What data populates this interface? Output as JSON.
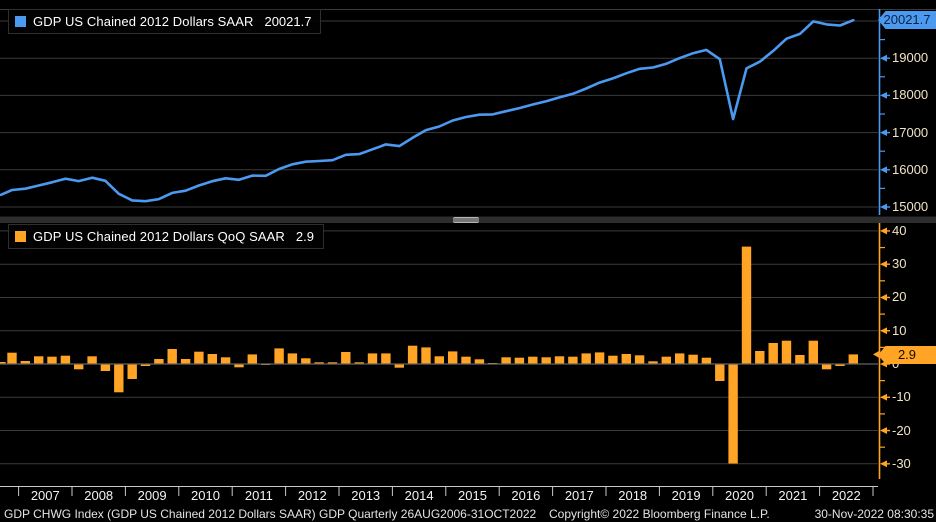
{
  "app": {
    "background": "#000000",
    "accent_blue": "#4c99f0",
    "accent_orange": "#ffa424",
    "grid_color": "#3a3a3a",
    "tick_label_color": "#f0e4c6"
  },
  "top_panel": {
    "legend": {
      "label": "GDP US Chained 2012 Dollars SAAR",
      "value": "20021.7"
    },
    "axis": {
      "badge": "20021.7",
      "tick_labels": [
        "19000",
        "18000",
        "17000",
        "16000",
        "15000"
      ]
    }
  },
  "bottom_panel": {
    "legend": {
      "label": "GDP US Chained 2012 Dollars QoQ SAAR",
      "value": "2.9"
    },
    "axis": {
      "badge": "2.9",
      "tick_labels": [
        "40",
        "30",
        "20",
        "10",
        "0",
        "-10",
        "-20",
        "-30"
      ]
    }
  },
  "x_axis": {
    "years": [
      "2007",
      "2008",
      "2009",
      "2010",
      "2011",
      "2012",
      "2013",
      "2014",
      "2015",
      "2016",
      "2017",
      "2018",
      "2019",
      "2020",
      "2021",
      "2022"
    ]
  },
  "footer": {
    "left": "GDP CHWG Index (GDP US Chained 2012 Dollars SAAR) GDP  Quarterly 26AUG2006-31OCT2022",
    "copyright": "Copyright© 2022 Bloomberg Finance L.P.",
    "datetime": "30-Nov-2022 08:30:35"
  },
  "chart_data": [
    {
      "type": "line",
      "title": "GDP US Chained 2012 Dollars SAAR",
      "color": "#4c99f0",
      "last_value": 20021.7,
      "ylim": [
        14785,
        20350
      ],
      "yticks": [
        15000,
        16000,
        17000,
        18000,
        19000,
        20000
      ],
      "grid": true,
      "legend_position": "top-left",
      "x": [
        "2006Q3",
        "2006Q4",
        "2007Q1",
        "2007Q2",
        "2007Q3",
        "2007Q4",
        "2008Q1",
        "2008Q2",
        "2008Q3",
        "2008Q4",
        "2009Q1",
        "2009Q2",
        "2009Q3",
        "2009Q4",
        "2010Q1",
        "2010Q2",
        "2010Q3",
        "2010Q4",
        "2011Q1",
        "2011Q2",
        "2011Q3",
        "2011Q4",
        "2012Q1",
        "2012Q2",
        "2012Q3",
        "2012Q4",
        "2013Q1",
        "2013Q2",
        "2013Q3",
        "2013Q4",
        "2014Q1",
        "2014Q2",
        "2014Q3",
        "2014Q4",
        "2015Q1",
        "2015Q2",
        "2015Q3",
        "2015Q4",
        "2016Q1",
        "2016Q2",
        "2016Q3",
        "2016Q4",
        "2017Q1",
        "2017Q2",
        "2017Q3",
        "2017Q4",
        "2018Q1",
        "2018Q2",
        "2018Q3",
        "2018Q4",
        "2019Q1",
        "2019Q2",
        "2019Q3",
        "2019Q4",
        "2020Q1",
        "2020Q2",
        "2020Q3",
        "2020Q4",
        "2021Q1",
        "2021Q2",
        "2021Q3",
        "2021Q4",
        "2022Q1",
        "2022Q2",
        "2022Q3"
      ],
      "values": [
        15327,
        15456,
        15491,
        15579,
        15664,
        15761,
        15697,
        15787,
        15704,
        15354,
        15178,
        15155,
        15212,
        15380,
        15437,
        15577,
        15693,
        15771,
        15731,
        15844,
        15840,
        16022,
        16149,
        16217,
        16237,
        16257,
        16402,
        16422,
        16552,
        16683,
        16637,
        16860,
        17067,
        17164,
        17325,
        17419,
        17480,
        17489,
        17576,
        17659,
        17755,
        17843,
        17945,
        18043,
        18186,
        18343,
        18457,
        18594,
        18714,
        18751,
        18853,
        19002,
        19134,
        19224,
        18974,
        17362,
        18725,
        18905,
        19196,
        19523,
        19654,
        19989,
        19909,
        19879,
        20021.7
      ]
    },
    {
      "type": "bar",
      "title": "GDP US Chained 2012 Dollars QoQ SAAR",
      "color": "#ffa424",
      "last_value": 2.9,
      "ylim": [
        -33,
        42
      ],
      "yticks": [
        -30,
        -20,
        -10,
        0,
        10,
        20,
        30,
        40
      ],
      "grid": true,
      "legend_position": "top-left",
      "x": [
        "2006Q3",
        "2006Q4",
        "2007Q1",
        "2007Q2",
        "2007Q3",
        "2007Q4",
        "2008Q1",
        "2008Q2",
        "2008Q3",
        "2008Q4",
        "2009Q1",
        "2009Q2",
        "2009Q3",
        "2009Q4",
        "2010Q1",
        "2010Q2",
        "2010Q3",
        "2010Q4",
        "2011Q1",
        "2011Q2",
        "2011Q3",
        "2011Q4",
        "2012Q1",
        "2012Q2",
        "2012Q3",
        "2012Q4",
        "2013Q1",
        "2013Q2",
        "2013Q3",
        "2013Q4",
        "2014Q1",
        "2014Q2",
        "2014Q3",
        "2014Q4",
        "2015Q1",
        "2015Q2",
        "2015Q3",
        "2015Q4",
        "2016Q1",
        "2016Q2",
        "2016Q3",
        "2016Q4",
        "2017Q1",
        "2017Q2",
        "2017Q3",
        "2017Q4",
        "2018Q1",
        "2018Q2",
        "2018Q3",
        "2018Q4",
        "2019Q1",
        "2019Q2",
        "2019Q3",
        "2019Q4",
        "2020Q1",
        "2020Q2",
        "2020Q3",
        "2020Q4",
        "2021Q1",
        "2021Q2",
        "2021Q3",
        "2021Q4",
        "2022Q1",
        "2022Q2",
        "2022Q3"
      ],
      "values": [
        0.6,
        3.4,
        0.9,
        2.3,
        2.2,
        2.5,
        -1.6,
        2.3,
        -2.1,
        -8.5,
        -4.5,
        -0.6,
        1.5,
        4.5,
        1.5,
        3.7,
        3.0,
        2.0,
        -1.0,
        2.9,
        -0.1,
        4.7,
        3.2,
        1.7,
        0.5,
        0.5,
        3.6,
        0.5,
        3.2,
        3.2,
        -1.1,
        5.5,
        5.0,
        2.3,
        3.8,
        2.2,
        1.4,
        0.2,
        2.0,
        1.9,
        2.2,
        2.0,
        2.3,
        2.2,
        3.2,
        3.5,
        2.5,
        3.0,
        2.6,
        0.8,
        2.2,
        3.2,
        2.8,
        1.9,
        -5.1,
        -29.9,
        35.3,
        3.9,
        6.3,
        7.0,
        2.7,
        7.0,
        -1.6,
        -0.6,
        2.9
      ]
    }
  ]
}
